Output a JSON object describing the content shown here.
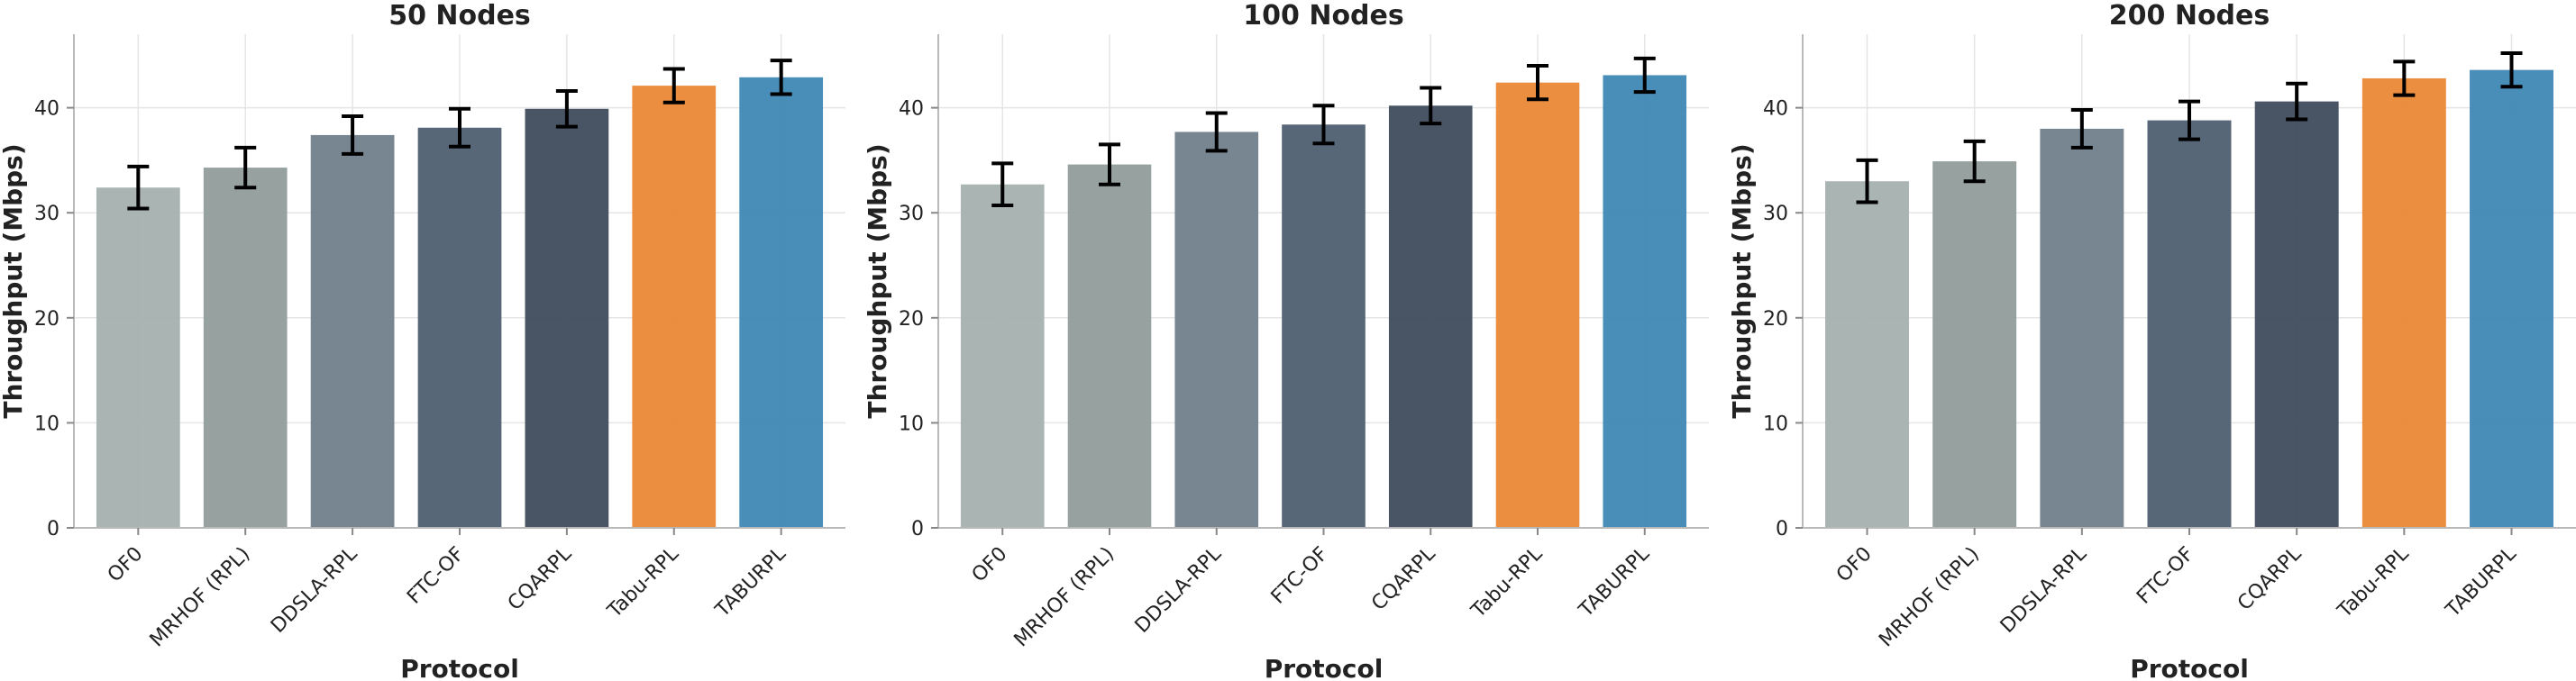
{
  "colors": {
    "OF0": "#a4b0af",
    "MRHOF (RPL)": "#919d9b",
    "DDSLA-RPL": "#717f8c",
    "FTC-OF": "#4f5f71",
    "CQARPL": "#3f4c5c",
    "Tabu-RPL": "#ea8836",
    "TABURPL": "#3f87b5"
  },
  "chart_data": [
    {
      "type": "bar",
      "title": "50 Nodes",
      "xlabel": "Protocol",
      "ylabel": "Throughput (Mbps)",
      "ylim": [
        0,
        47
      ],
      "yticks": [
        0,
        10,
        20,
        30,
        40
      ],
      "grid": true,
      "categories": [
        "OF0",
        "MRHOF (RPL)",
        "DDSLA-RPL",
        "FTC-OF",
        "CQARPL",
        "Tabu-RPL",
        "TABURPL"
      ],
      "values": [
        32.4,
        34.3,
        37.4,
        38.1,
        39.9,
        42.1,
        42.9
      ],
      "errors": [
        2.0,
        1.9,
        1.8,
        1.8,
        1.7,
        1.6,
        1.6
      ]
    },
    {
      "type": "bar",
      "title": "100 Nodes",
      "xlabel": "Protocol",
      "ylabel": "Throughput (Mbps)",
      "ylim": [
        0,
        47
      ],
      "yticks": [
        0,
        10,
        20,
        30,
        40
      ],
      "grid": true,
      "categories": [
        "OF0",
        "MRHOF (RPL)",
        "DDSLA-RPL",
        "FTC-OF",
        "CQARPL",
        "Tabu-RPL",
        "TABURPL"
      ],
      "values": [
        32.7,
        34.6,
        37.7,
        38.4,
        40.2,
        42.4,
        43.1
      ],
      "errors": [
        2.0,
        1.9,
        1.8,
        1.8,
        1.7,
        1.6,
        1.6
      ]
    },
    {
      "type": "bar",
      "title": "200 Nodes",
      "xlabel": "Protocol",
      "ylabel": "Throughput (Mbps)",
      "ylim": [
        0,
        47
      ],
      "yticks": [
        0,
        10,
        20,
        30,
        40
      ],
      "grid": true,
      "categories": [
        "OF0",
        "MRHOF (RPL)",
        "DDSLA-RPL",
        "FTC-OF",
        "CQARPL",
        "Tabu-RPL",
        "TABURPL"
      ],
      "values": [
        33.0,
        34.9,
        38.0,
        38.8,
        40.6,
        42.8,
        43.6
      ],
      "errors": [
        2.0,
        1.9,
        1.8,
        1.8,
        1.7,
        1.6,
        1.6
      ]
    }
  ]
}
